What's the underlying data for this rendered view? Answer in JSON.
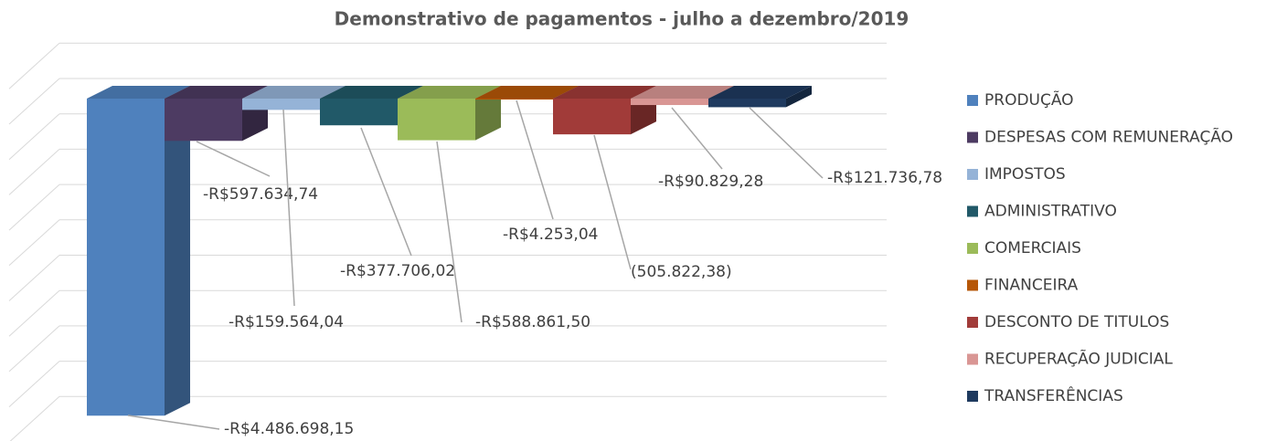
{
  "chart_data": {
    "type": "bar3d",
    "title": "Demonstrativo de pagamentos - julho a dezembro/2019",
    "series": [
      {
        "name": "PRODUÇÃO",
        "color": "#4f81bd",
        "values": [
          -4486698.15
        ],
        "value_labels": [
          "-R$4.486.698,15"
        ]
      },
      {
        "name": "DESPESAS COM REMUNERAÇÃO",
        "color": "#4d3b62",
        "values": [
          -597634.74
        ],
        "value_labels": [
          "-R$597.634,74"
        ]
      },
      {
        "name": "IMPOSTOS",
        "color": "#95b3d7",
        "values": [
          -159564.04
        ],
        "value_labels": [
          "-R$159.564,04"
        ]
      },
      {
        "name": "ADMINISTRATIVO",
        "color": "#215968",
        "values": [
          -377706.02
        ],
        "value_labels": [
          "-R$377.706,02"
        ]
      },
      {
        "name": "COMERCIAIS",
        "color": "#9bbb59",
        "values": [
          -588861.5
        ],
        "value_labels": [
          "-R$588.861,50"
        ]
      },
      {
        "name": "FINANCEIRA",
        "color": "#b65708",
        "values": [
          -4253.04
        ],
        "value_labels": [
          "-R$4.253,04"
        ]
      },
      {
        "name": "DESCONTO DE TITULOS",
        "color": "#a13b39",
        "values": [
          -505822.38
        ],
        "value_labels": [
          "(505.822,38)"
        ]
      },
      {
        "name": "RECUPERAÇÃO JUDICIAL",
        "color": "#d99694",
        "values": [
          -90829.28
        ],
        "value_labels": [
          "-R$90.829,28"
        ]
      },
      {
        "name": "TRANSFERÊNCIAS",
        "color": "#1f3a5f",
        "values": [
          -121736.78
        ],
        "value_labels": [
          "-R$121.736,78"
        ]
      }
    ],
    "ylim": [
      -4500000,
      500000
    ],
    "yticks": [
      -4500000,
      -4000000,
      -3500000,
      -3000000,
      -2500000,
      -2000000,
      -1500000,
      -1000000,
      -500000,
      0,
      500000
    ],
    "grid": true,
    "legend": "right"
  }
}
